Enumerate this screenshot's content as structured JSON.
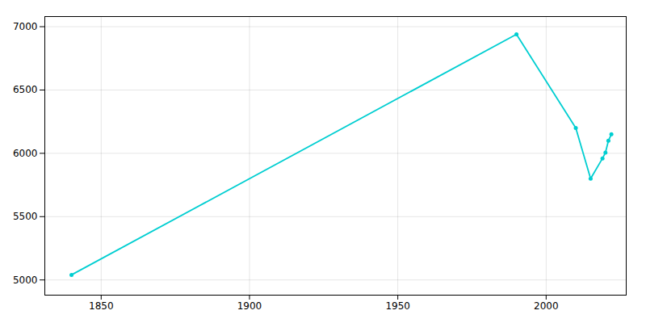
{
  "chart_data": {
    "type": "line",
    "x": [
      1840,
      1990,
      2010,
      2015,
      2019,
      2020,
      2021,
      2022
    ],
    "values": [
      5040,
      6940,
      6200,
      5800,
      5960,
      6005,
      6100,
      6150
    ],
    "color": "#00CED1",
    "marker": "circle",
    "xlim": [
      1831,
      2027
    ],
    "xticks": [
      1850,
      1900,
      1950,
      2000
    ],
    "ylim": [
      4880,
      7080
    ],
    "yticks": [
      5000,
      5500,
      6000,
      6500,
      7000
    ],
    "grid": true
  }
}
